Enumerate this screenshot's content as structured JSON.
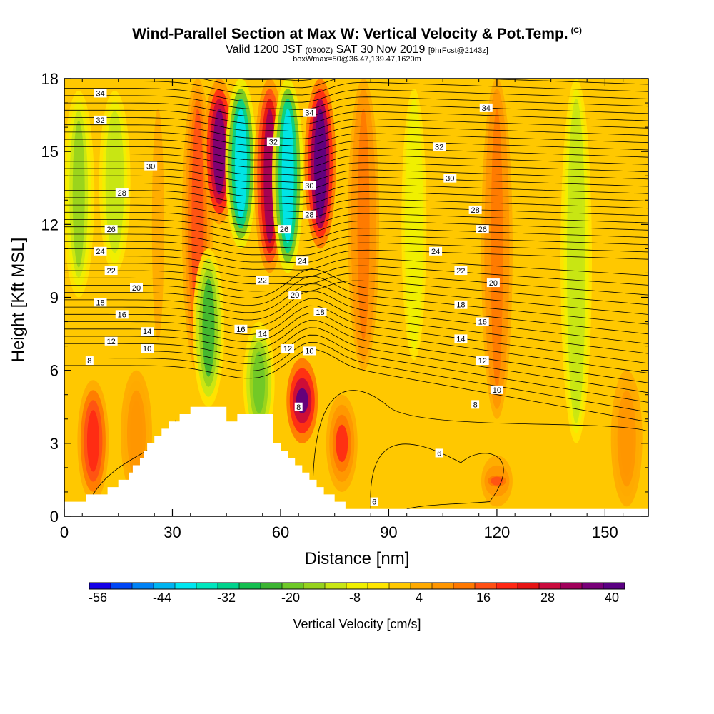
{
  "header": {
    "title": "Wind-Parallel Section at Max W: Vertical Velocity & Pot.Temp.",
    "copyright": "(C)",
    "valid_a": "Valid 1200 JST",
    "valid_z": "(0300Z)",
    "valid_b": "SAT 30 Nov 2019",
    "forecast": "[9hrFcst@2143z]",
    "box_info": "boxWmax=50@36.47,139.47,1620m"
  },
  "chart_data": {
    "type": "heatmap",
    "xlabel": "Distance [nm]",
    "ylabel": "Height [Kft MSL]",
    "xlim": [
      0,
      162
    ],
    "ylim": [
      0,
      18
    ],
    "x_ticks": [
      "0",
      "30",
      "60",
      "90",
      "120",
      "150"
    ],
    "y_ticks": [
      "0",
      "3",
      "6",
      "9",
      "12",
      "15",
      "18"
    ],
    "colorbar": {
      "label": "Vertical Velocity [cm/s]",
      "tick_labels": [
        "-56",
        "-44",
        "-32",
        "-20",
        "-8",
        "4",
        "16",
        "28",
        "40"
      ],
      "colors": [
        "#1400e6",
        "#0046f5",
        "#0082f5",
        "#00b4f0",
        "#00e6f0",
        "#00e6be",
        "#00d28c",
        "#14be50",
        "#3cb432",
        "#6ec828",
        "#96d21e",
        "#c8e614",
        "#f0f000",
        "#ffe600",
        "#ffc800",
        "#ffaa00",
        "#ff9600",
        "#ff7800",
        "#ff5014",
        "#ff2814",
        "#e61414",
        "#c80a3c",
        "#a0005a",
        "#780078",
        "#5a0082"
      ]
    },
    "velocity_bands_cm_s": [
      {
        "x_center": 8,
        "z_range": [
          0.6,
          5.6
        ],
        "value": 22
      },
      {
        "x_center": 20,
        "z_range": [
          0.8,
          6.0
        ],
        "value": 10
      },
      {
        "x_center": 4,
        "z_range": [
          9,
          17.5
        ],
        "value": -16
      },
      {
        "x_center": 14,
        "z_range": [
          10,
          17.5
        ],
        "value": -12
      },
      {
        "x_center": 26,
        "z_range": [
          6,
          18
        ],
        "value": 4
      },
      {
        "x_center": 37,
        "z_range": [
          6,
          18
        ],
        "value": 18
      },
      {
        "x_center": 43,
        "z_range": [
          12,
          18
        ],
        "value": 38
      },
      {
        "x_center": 40,
        "z_range": [
          4.5,
          11
        ],
        "value": -22
      },
      {
        "x_center": 49,
        "z_range": [
          11,
          18
        ],
        "value": -40
      },
      {
        "x_center": 54,
        "z_range": [
          3,
          8
        ],
        "value": -20
      },
      {
        "x_center": 57,
        "z_range": [
          10,
          18
        ],
        "value": 32
      },
      {
        "x_center": 62,
        "z_range": [
          10,
          18
        ],
        "value": -40
      },
      {
        "x_center": 66,
        "z_range": [
          3,
          6.5
        ],
        "value": 40
      },
      {
        "x_center": 71,
        "z_range": [
          11,
          18
        ],
        "value": 44
      },
      {
        "x_center": 77,
        "z_range": [
          1,
          5
        ],
        "value": 20
      },
      {
        "x_center": 83,
        "z_range": [
          6,
          18
        ],
        "value": 14
      },
      {
        "x_center": 92,
        "z_range": [
          0.4,
          4
        ],
        "value": 2
      },
      {
        "x_center": 97,
        "z_range": [
          6,
          18
        ],
        "value": -8
      },
      {
        "x_center": 120,
        "z_range": [
          4,
          18
        ],
        "value": 14
      },
      {
        "x_center": 120,
        "z_range": [
          0.4,
          2.5
        ],
        "value": 16
      },
      {
        "x_center": 142,
        "z_range": [
          3,
          18
        ],
        "value": -12
      },
      {
        "x_center": 156,
        "z_range": [
          0.4,
          6
        ],
        "value": 10
      }
    ],
    "theta_contour_labels": [
      {
        "text": "34",
        "x": 10,
        "z": 17.4
      },
      {
        "text": "34",
        "x": 68,
        "z": 16.6
      },
      {
        "text": "34",
        "x": 117,
        "z": 16.8
      },
      {
        "text": "32",
        "x": 10,
        "z": 16.3
      },
      {
        "text": "32",
        "x": 58,
        "z": 15.4
      },
      {
        "text": "32",
        "x": 104,
        "z": 15.2
      },
      {
        "text": "30",
        "x": 24,
        "z": 14.4
      },
      {
        "text": "30",
        "x": 68,
        "z": 13.6
      },
      {
        "text": "30",
        "x": 107,
        "z": 13.9
      },
      {
        "text": "28",
        "x": 16,
        "z": 13.3
      },
      {
        "text": "28",
        "x": 68,
        "z": 12.4
      },
      {
        "text": "28",
        "x": 114,
        "z": 12.6
      },
      {
        "text": "26",
        "x": 13,
        "z": 11.8
      },
      {
        "text": "26",
        "x": 61,
        "z": 11.8
      },
      {
        "text": "26",
        "x": 116,
        "z": 11.8
      },
      {
        "text": "24",
        "x": 10,
        "z": 10.9
      },
      {
        "text": "24",
        "x": 66,
        "z": 10.5
      },
      {
        "text": "24",
        "x": 103,
        "z": 10.9
      },
      {
        "text": "22",
        "x": 13,
        "z": 10.1
      },
      {
        "text": "22",
        "x": 55,
        "z": 9.7
      },
      {
        "text": "22",
        "x": 110,
        "z": 10.1
      },
      {
        "text": "20",
        "x": 20,
        "z": 9.4
      },
      {
        "text": "20",
        "x": 64,
        "z": 9.1
      },
      {
        "text": "20",
        "x": 119,
        "z": 9.6
      },
      {
        "text": "18",
        "x": 10,
        "z": 8.8
      },
      {
        "text": "18",
        "x": 71,
        "z": 8.4
      },
      {
        "text": "18",
        "x": 110,
        "z": 8.7
      },
      {
        "text": "16",
        "x": 16,
        "z": 8.3
      },
      {
        "text": "16",
        "x": 49,
        "z": 7.7
      },
      {
        "text": "16",
        "x": 116,
        "z": 8.0
      },
      {
        "text": "14",
        "x": 23,
        "z": 7.6
      },
      {
        "text": "14",
        "x": 55,
        "z": 7.5
      },
      {
        "text": "14",
        "x": 110,
        "z": 7.3
      },
      {
        "text": "12",
        "x": 13,
        "z": 7.2
      },
      {
        "text": "12",
        "x": 62,
        "z": 6.9
      },
      {
        "text": "12",
        "x": 116,
        "z": 6.4
      },
      {
        "text": "10",
        "x": 23,
        "z": 6.9
      },
      {
        "text": "10",
        "x": 68,
        "z": 6.8
      },
      {
        "text": "10",
        "x": 120,
        "z": 5.2
      },
      {
        "text": "8",
        "x": 7,
        "z": 6.4
      },
      {
        "text": "8",
        "x": 65,
        "z": 4.5
      },
      {
        "text": "8",
        "x": 114,
        "z": 4.6
      },
      {
        "text": "6",
        "x": 104,
        "z": 2.6
      },
      {
        "text": "6",
        "x": 86,
        "z": 0.6
      }
    ],
    "terrain_heights_kft": [
      [
        0,
        0.6
      ],
      [
        6,
        0.6
      ],
      [
        6,
        0.9
      ],
      [
        12,
        0.9
      ],
      [
        12,
        1.2
      ],
      [
        15,
        1.2
      ],
      [
        15,
        1.5
      ],
      [
        18,
        1.5
      ],
      [
        18,
        1.8
      ],
      [
        19,
        1.8
      ],
      [
        19,
        2.1
      ],
      [
        21,
        2.1
      ],
      [
        21,
        2.4
      ],
      [
        22,
        2.4
      ],
      [
        22,
        2.7
      ],
      [
        23,
        2.7
      ],
      [
        23,
        3.0
      ],
      [
        25,
        3.0
      ],
      [
        25,
        3.3
      ],
      [
        27,
        3.3
      ],
      [
        27,
        3.6
      ],
      [
        29,
        3.6
      ],
      [
        29,
        3.9
      ],
      [
        32,
        3.9
      ],
      [
        32,
        4.2
      ],
      [
        35,
        4.2
      ],
      [
        35,
        4.5
      ],
      [
        45,
        4.5
      ],
      [
        45,
        3.9
      ],
      [
        48,
        3.9
      ],
      [
        48,
        4.2
      ],
      [
        58,
        4.2
      ],
      [
        58,
        3.0
      ],
      [
        60,
        3.0
      ],
      [
        60,
        2.7
      ],
      [
        62,
        2.7
      ],
      [
        62,
        2.4
      ],
      [
        64,
        2.4
      ],
      [
        64,
        2.1
      ],
      [
        66,
        2.1
      ],
      [
        66,
        1.8
      ],
      [
        68,
        1.8
      ],
      [
        68,
        1.5
      ],
      [
        70,
        1.5
      ],
      [
        70,
        1.2
      ],
      [
        72,
        1.2
      ],
      [
        72,
        0.9
      ],
      [
        75,
        0.9
      ],
      [
        75,
        0.6
      ],
      [
        78,
        0.6
      ],
      [
        78,
        0.3
      ],
      [
        162,
        0.3
      ]
    ]
  }
}
